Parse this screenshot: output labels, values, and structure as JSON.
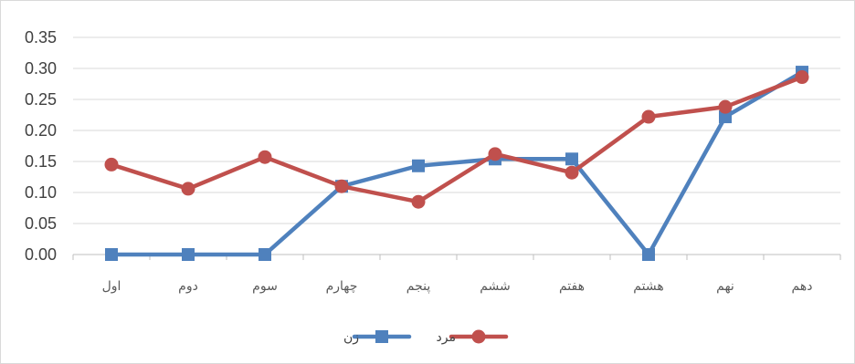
{
  "chart_data": {
    "type": "line",
    "categories": [
      "اول",
      "دوم",
      "سوم",
      "چهارم",
      "پنجم",
      "ششم",
      "هفتم",
      "هشتم",
      "نهم",
      "دهم"
    ],
    "series": [
      {
        "name": "زن",
        "color": "#4f81bd",
        "marker": "square",
        "values": [
          0.0,
          0.0,
          0.0,
          0.11,
          0.143,
          0.154,
          0.154,
          0.0,
          0.222,
          0.294
        ]
      },
      {
        "name": "مرد",
        "color": "#c0504d",
        "marker": "circle",
        "values": [
          0.145,
          0.106,
          0.157,
          0.11,
          0.085,
          0.162,
          0.132,
          0.222,
          0.238,
          0.286
        ]
      }
    ],
    "ylim": [
      0,
      0.35
    ],
    "yticks": [
      "0.00",
      "0.05",
      "0.10",
      "0.15",
      "0.20",
      "0.25",
      "0.30",
      "0.35"
    ],
    "grid": true,
    "legend": "bottom-center"
  }
}
